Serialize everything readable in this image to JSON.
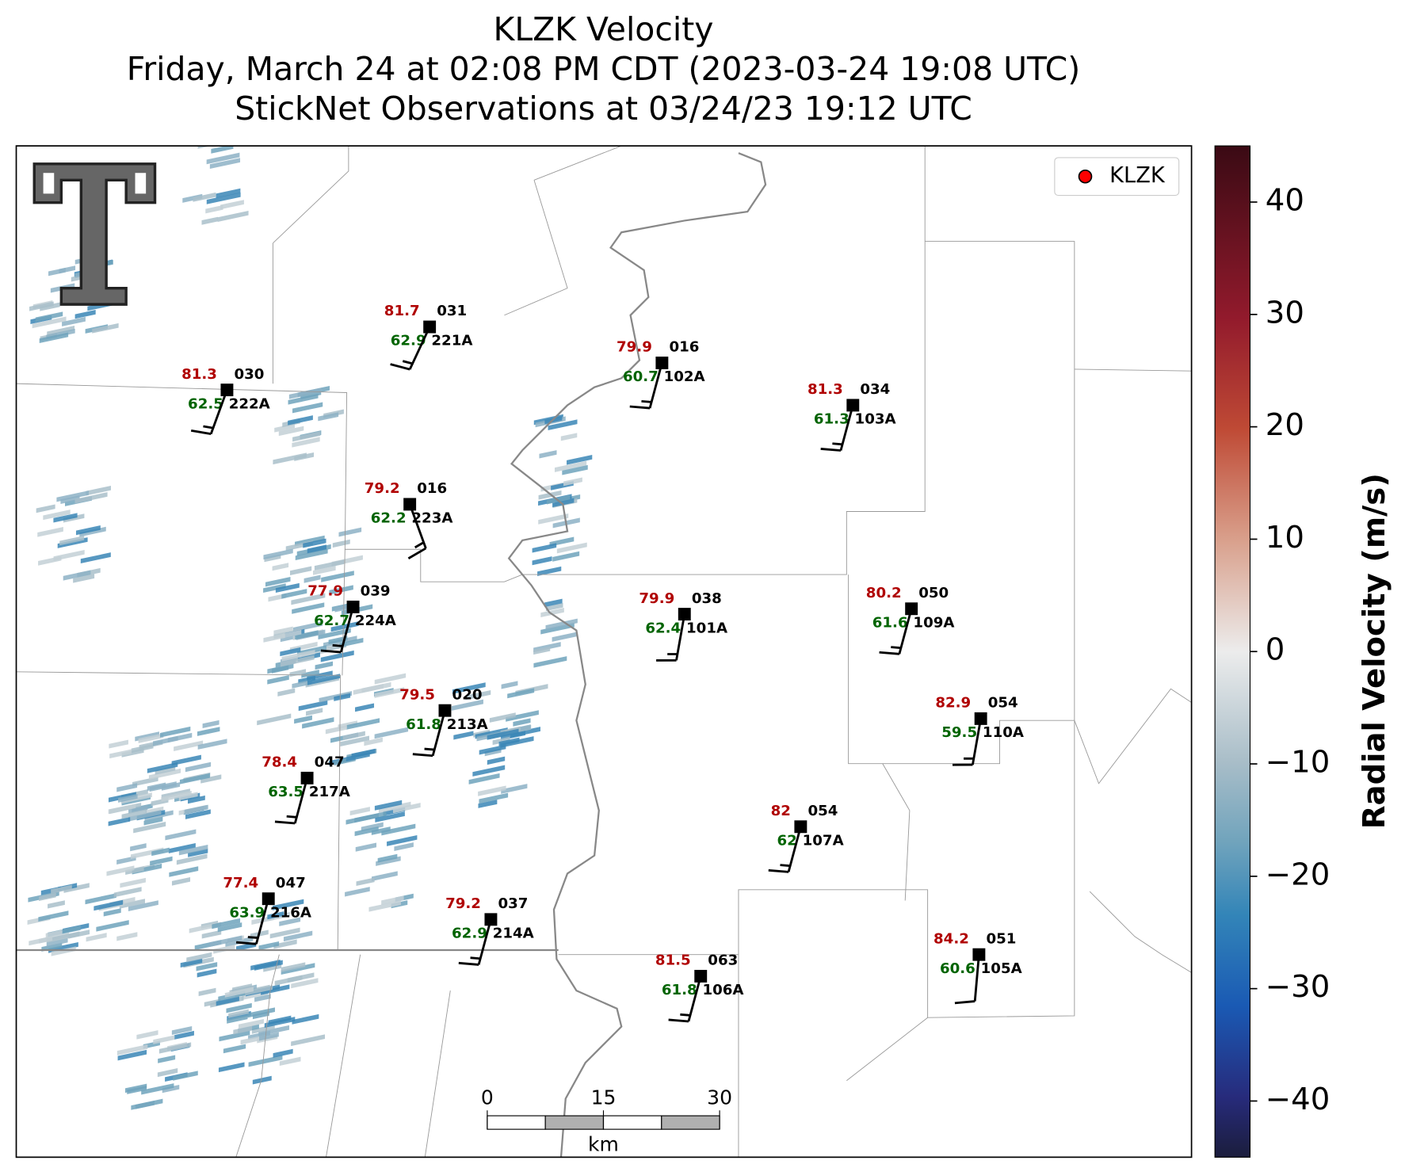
{
  "header": {
    "title": [
      "KLZK Velocity",
      "Friday, March 24 at 02:08 PM CDT (2023-03-24 19:08 UTC)",
      "StickNet Observations at 03/24/23 19:12 UTC"
    ]
  },
  "legend": {
    "label": "KLZK",
    "color": "#ff0000"
  },
  "stations": [
    {
      "id": "222A",
      "temperature": 81.3,
      "dewpoint": 62.5,
      "code": "030",
      "wind_direction": 200,
      "wind_speed": 15
    },
    {
      "id": "221A",
      "temperature": 81.7,
      "dewpoint": 62.9,
      "code": "031",
      "wind_direction": 205,
      "wind_speed": 15
    },
    {
      "id": "102A",
      "temperature": 79.9,
      "dewpoint": 60.7,
      "code": "016",
      "wind_direction": 195,
      "wind_speed": 15
    },
    {
      "id": "103A",
      "temperature": 81.3,
      "dewpoint": 61.3,
      "code": "034",
      "wind_direction": 195,
      "wind_speed": 15
    },
    {
      "id": "223A",
      "temperature": 79.2,
      "dewpoint": 62.2,
      "code": "016",
      "wind_direction": 160,
      "wind_speed": 15
    },
    {
      "id": "224A",
      "temperature": 77.9,
      "dewpoint": 62.7,
      "code": "039",
      "wind_direction": 195,
      "wind_speed": 15
    },
    {
      "id": "101A",
      "temperature": 79.9,
      "dewpoint": 62.4,
      "code": "038",
      "wind_direction": 190,
      "wind_speed": 15
    },
    {
      "id": "109A",
      "temperature": 80.2,
      "dewpoint": 61.6,
      "code": "050",
      "wind_direction": 195,
      "wind_speed": 15
    },
    {
      "id": "213A",
      "temperature": 79.5,
      "dewpoint": 61.8,
      "code": "020",
      "wind_direction": 195,
      "wind_speed": 15
    },
    {
      "id": "110A",
      "temperature": 82.9,
      "dewpoint": 59.5,
      "code": "054",
      "wind_direction": 190,
      "wind_speed": 15
    },
    {
      "id": "217A",
      "temperature": 78.4,
      "dewpoint": 63.5,
      "code": "047",
      "wind_direction": 195,
      "wind_speed": 15
    },
    {
      "id": "107A",
      "temperature": 82.0,
      "dewpoint": 62.0,
      "code": "054",
      "wind_direction": 195,
      "wind_speed": 15
    },
    {
      "id": "216A",
      "temperature": 77.4,
      "dewpoint": 63.9,
      "code": "047",
      "wind_direction": 195,
      "wind_speed": 15
    },
    {
      "id": "214A",
      "temperature": 79.2,
      "dewpoint": 62.9,
      "code": "037",
      "wind_direction": 195,
      "wind_speed": 15
    },
    {
      "id": "106A",
      "temperature": 81.5,
      "dewpoint": 61.8,
      "code": "063",
      "wind_direction": 195,
      "wind_speed": 15
    },
    {
      "id": "105A",
      "temperature": 84.2,
      "dewpoint": 60.6,
      "code": "051",
      "wind_direction": 185,
      "wind_speed": 10
    }
  ],
  "colorbar": {
    "label": "Radial Velocity (m/s)",
    "lim": [
      -45,
      45
    ],
    "ticks": [
      {
        "value": -40,
        "label": "−40"
      },
      {
        "value": -30,
        "label": "−30"
      },
      {
        "value": -20,
        "label": "−20"
      },
      {
        "value": -10,
        "label": "−10"
      },
      0,
      10,
      20,
      30,
      40
    ]
  },
  "scale_bar": {
    "ticks": [
      0,
      15,
      30
    ],
    "unit": "km"
  }
}
